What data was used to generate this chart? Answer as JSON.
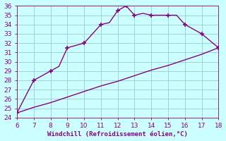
{
  "x_upper": [
    6,
    7,
    8,
    8.5,
    9,
    10,
    11,
    11.5,
    12,
    12.5,
    13,
    13.5,
    14,
    14.5,
    15,
    15.5,
    16,
    17,
    18
  ],
  "y_upper": [
    24.5,
    28,
    29,
    29.5,
    31.5,
    32,
    34,
    34.2,
    35.5,
    36,
    35,
    35.2,
    35,
    35,
    35,
    35,
    34,
    33,
    31.5
  ],
  "x_lower": [
    6,
    7,
    8,
    9,
    10,
    11,
    12,
    13,
    14,
    15,
    16,
    17,
    18
  ],
  "y_lower": [
    24.5,
    25.1,
    25.6,
    26.2,
    26.8,
    27.4,
    27.9,
    28.5,
    29.1,
    29.6,
    30.2,
    30.8,
    31.5
  ],
  "line_color": "#880088",
  "bg_color": "#ccffff",
  "grid_color": "#99cccc",
  "xlabel": "Windchill (Refroidissement éolien,°C)",
  "xlabel_color": "#880088",
  "tick_color": "#880088",
  "xlim": [
    6,
    18
  ],
  "ylim": [
    24,
    36
  ],
  "xticks": [
    6,
    7,
    8,
    9,
    10,
    11,
    12,
    13,
    14,
    15,
    16,
    17,
    18
  ],
  "yticks": [
    24,
    25,
    26,
    27,
    28,
    29,
    30,
    31,
    32,
    33,
    34,
    35,
    36
  ],
  "marker": "+",
  "upper_marker_x": [
    6,
    7,
    8,
    9,
    10,
    11,
    12,
    12.5,
    13,
    14,
    15,
    16,
    17,
    18
  ],
  "upper_marker_y": [
    24.5,
    28,
    29,
    31.5,
    32,
    34,
    35.5,
    36,
    35,
    35,
    35,
    34,
    33,
    31.5
  ],
  "markersize": 4,
  "linewidth": 1.0,
  "figwidth": 3.2,
  "figheight": 2.0,
  "dpi": 100
}
